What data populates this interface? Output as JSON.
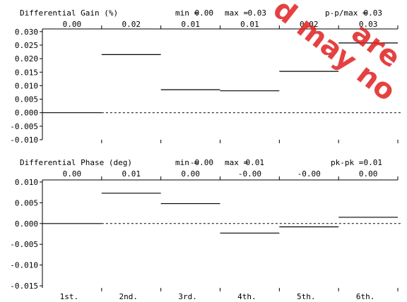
{
  "chart_data": [
    {
      "type": "bar",
      "title": "Differential Gain (%)",
      "stats": [
        {
          "label": "min =",
          "value": "0.00"
        },
        {
          "label": "max =",
          "value": "0.03"
        },
        {
          "label": "p-p/max =",
          "value": "0.03"
        }
      ],
      "categories": [
        "1st.",
        "2nd.",
        "3rd.",
        "4th.",
        "5th.",
        "6th."
      ],
      "values": [
        0.0,
        0.0215,
        0.0085,
        0.0081,
        0.0153,
        0.0258
      ],
      "value_labels": [
        "0.00",
        "0.02",
        "0.01",
        "0.01",
        "0.02",
        "0.03"
      ],
      "ylim": [
        -0.01,
        0.031
      ],
      "yticks": [
        0.03,
        0.025,
        0.02,
        0.015,
        0.01,
        0.005,
        0.0,
        -0.005,
        -0.01
      ],
      "ytick_labels": [
        "0.030",
        "0.025",
        "0.020",
        "0.015",
        "0.010",
        "0.005",
        "0.000",
        "-0.005",
        "-0.010"
      ],
      "zero_line": "dashed"
    },
    {
      "type": "bar",
      "title": "Differential Phase (deg)",
      "stats": [
        {
          "label": "min =",
          "value": "-0.00"
        },
        {
          "label": "max =",
          "value": "0.01"
        },
        {
          "label": "pk-pk =",
          "value": "0.01"
        }
      ],
      "categories": [
        "1st.",
        "2nd.",
        "3rd.",
        "4th.",
        "5th.",
        "6th."
      ],
      "values": [
        0.0,
        0.0073,
        0.0048,
        -0.0023,
        -0.0008,
        0.0015
      ],
      "value_labels": [
        "0.00",
        "0.01",
        "0.00",
        "-0.00",
        "-0.00",
        "0.00"
      ],
      "ylim": [
        -0.0155,
        0.0105
      ],
      "yticks": [
        0.01,
        0.005,
        0.0,
        -0.005,
        -0.01,
        -0.015
      ],
      "ytick_labels": [
        "0.010",
        "0.005",
        "0.000",
        "-0.005",
        "-0.010",
        "-0.015"
      ],
      "zero_line": "dashed"
    }
  ],
  "watermark": {
    "lines": [
      "are",
      "d may no"
    ],
    "color": "#e02020"
  }
}
